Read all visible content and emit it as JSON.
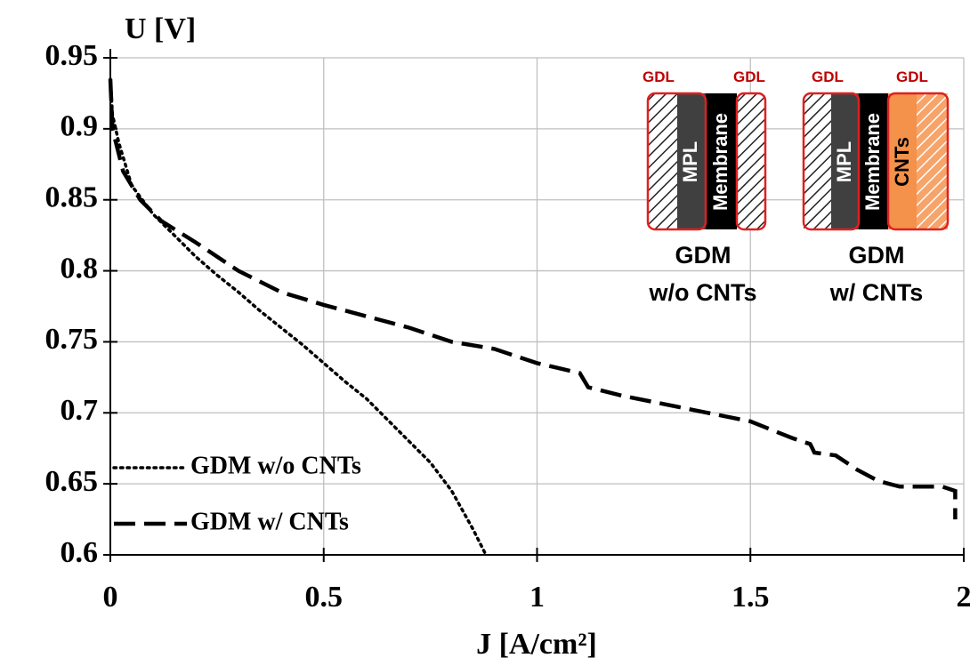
{
  "chart_data": {
    "type": "line",
    "y_label": "U [V]",
    "x_label": "J [A/cm²]",
    "xlim": [
      0,
      2
    ],
    "ylim": [
      0.6,
      0.95
    ],
    "xticks": [
      0,
      0.5,
      1,
      1.5,
      2
    ],
    "yticks": [
      0.6,
      0.65,
      0.7,
      0.75,
      0.8,
      0.85,
      0.9,
      0.95
    ],
    "grid": true,
    "legend": "lower left",
    "series": [
      {
        "name": "GDM w/o CNTs",
        "color": "#000000",
        "style": "dotted",
        "x": [
          0,
          0.005,
          0.02,
          0.05,
          0.1,
          0.15,
          0.2,
          0.25,
          0.3,
          0.35,
          0.4,
          0.45,
          0.5,
          0.55,
          0.6,
          0.65,
          0.7,
          0.75,
          0.8,
          0.85,
          0.88
        ],
        "values": [
          0.935,
          0.91,
          0.89,
          0.86,
          0.84,
          0.825,
          0.81,
          0.797,
          0.785,
          0.772,
          0.76,
          0.748,
          0.735,
          0.722,
          0.71,
          0.695,
          0.68,
          0.665,
          0.645,
          0.618,
          0.6
        ]
      },
      {
        "name": "GDM w/ CNTs",
        "color": "#000000",
        "style": "dashed",
        "x": [
          0,
          0.005,
          0.03,
          0.07,
          0.12,
          0.2,
          0.3,
          0.4,
          0.5,
          0.6,
          0.7,
          0.8,
          0.9,
          1.0,
          1.1,
          1.12,
          1.2,
          1.3,
          1.4,
          1.5,
          1.55,
          1.6,
          1.64,
          1.65,
          1.7,
          1.75,
          1.8,
          1.85,
          1.95,
          1.98,
          1.98
        ],
        "values": [
          0.935,
          0.9,
          0.87,
          0.85,
          0.835,
          0.82,
          0.8,
          0.785,
          0.776,
          0.768,
          0.76,
          0.75,
          0.745,
          0.735,
          0.728,
          0.718,
          0.712,
          0.706,
          0.7,
          0.694,
          0.688,
          0.682,
          0.678,
          0.672,
          0.67,
          0.66,
          0.652,
          0.648,
          0.648,
          0.645,
          0.625
        ]
      }
    ],
    "inset": {
      "left": {
        "gdl_a": "GDL",
        "gdl_b": "GDL",
        "mpl": "MPL",
        "membrane": "Membrane",
        "caption_1": "GDM",
        "caption_2": "w/o CNTs"
      },
      "right": {
        "gdl_a": "GDL",
        "gdl_b": "GDL",
        "mpl": "MPL",
        "membrane": "Membrane",
        "cnts": "CNTs",
        "caption_1": "GDM",
        "caption_2": "w/ CNTs"
      }
    }
  }
}
